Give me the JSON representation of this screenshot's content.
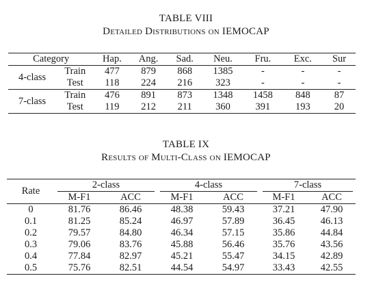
{
  "table8": {
    "caption": "TABLE VIII",
    "subtitle": "Detailed Distributions on IEMOCAP",
    "header": {
      "category": "Category",
      "columns": [
        "Hap.",
        "Ang.",
        "Sad.",
        "Neu.",
        "Fru.",
        "Exc.",
        "Sur"
      ]
    },
    "groups": [
      {
        "name": "4-class",
        "rows": [
          {
            "split": "Train",
            "values": [
              "477",
              "879",
              "868",
              "1385",
              "-",
              "-",
              "-"
            ]
          },
          {
            "split": "Test",
            "values": [
              "118",
              "224",
              "216",
              "323",
              "-",
              "-",
              "-"
            ]
          }
        ]
      },
      {
        "name": "7-class",
        "rows": [
          {
            "split": "Train",
            "values": [
              "476",
              "891",
              "873",
              "1348",
              "1458",
              "848",
              "87"
            ]
          },
          {
            "split": "Test",
            "values": [
              "119",
              "212",
              "211",
              "360",
              "391",
              "193",
              "20"
            ]
          }
        ]
      }
    ]
  },
  "table9": {
    "caption": "TABLE IX",
    "subtitle": "Results of Multi-Class on IEMOCAP",
    "header": {
      "rate": "Rate",
      "groups": [
        "2-class",
        "4-class",
        "7-class"
      ],
      "metrics": [
        "M-F1",
        "ACC",
        "M-F1",
        "ACC",
        "M-F1",
        "ACC"
      ]
    },
    "rows": [
      {
        "rate": "0",
        "values": [
          "81.76",
          "86.46",
          "48.38",
          "59.43",
          "37.21",
          "47.90"
        ]
      },
      {
        "rate": "0.1",
        "values": [
          "81.25",
          "85.24",
          "46.97",
          "57.89",
          "36.45",
          "46.13"
        ]
      },
      {
        "rate": "0.2",
        "values": [
          "79.57",
          "84.80",
          "46.34",
          "57.15",
          "35.86",
          "44.84"
        ]
      },
      {
        "rate": "0.3",
        "values": [
          "79.06",
          "83.76",
          "45.88",
          "56.46",
          "35.76",
          "43.56"
        ]
      },
      {
        "rate": "0.4",
        "values": [
          "77.84",
          "82.97",
          "45.21",
          "55.47",
          "34.15",
          "42.89"
        ]
      },
      {
        "rate": "0.5",
        "values": [
          "75.76",
          "82.51",
          "44.54",
          "54.97",
          "33.43",
          "42.55"
        ]
      }
    ]
  }
}
